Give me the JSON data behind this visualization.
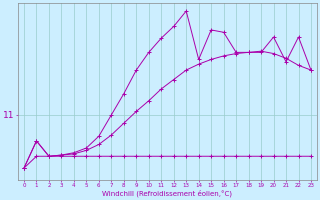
{
  "xlabel": "Windchill (Refroidissement éolien,°C)",
  "background_color": "#cceeff",
  "line_color": "#aa00aa",
  "grid_color": "#99cccc",
  "ylim": [
    10.45,
    11.95
  ],
  "yticks": [
    11
  ],
  "yticklabels": [
    "11"
  ],
  "line_flat": [
    10.55,
    10.65,
    10.65,
    10.65,
    10.65,
    10.65,
    10.65,
    10.65,
    10.65,
    10.65,
    10.65,
    10.65,
    10.65,
    10.65,
    10.65,
    10.65,
    10.65,
    10.65,
    10.65,
    10.65,
    10.65,
    10.65,
    10.65,
    10.65
  ],
  "line_mid": [
    10.55,
    10.78,
    10.65,
    10.66,
    10.67,
    10.7,
    10.75,
    10.83,
    10.93,
    11.03,
    11.12,
    11.22,
    11.3,
    11.38,
    11.43,
    11.47,
    11.5,
    11.52,
    11.53,
    11.54,
    11.52,
    11.48,
    11.42,
    11.38
  ],
  "line_top": [
    10.55,
    10.78,
    10.65,
    10.66,
    10.68,
    10.72,
    10.82,
    11.0,
    11.18,
    11.38,
    11.53,
    11.65,
    11.75,
    11.88,
    11.47,
    11.72,
    11.7,
    11.53,
    11.53,
    11.53,
    11.66,
    11.45,
    11.66,
    11.38
  ]
}
